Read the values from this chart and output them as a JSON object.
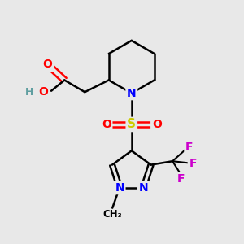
{
  "bg_color": "#e8e8e8",
  "bond_color": "#000000",
  "atom_colors": {
    "O": "#ff0000",
    "N": "#0000ff",
    "S": "#cccc00",
    "F": "#cc00cc",
    "H": "#5f9ea0",
    "C": "#000000"
  },
  "figsize": [
    3.0,
    3.0
  ],
  "dpi": 100
}
